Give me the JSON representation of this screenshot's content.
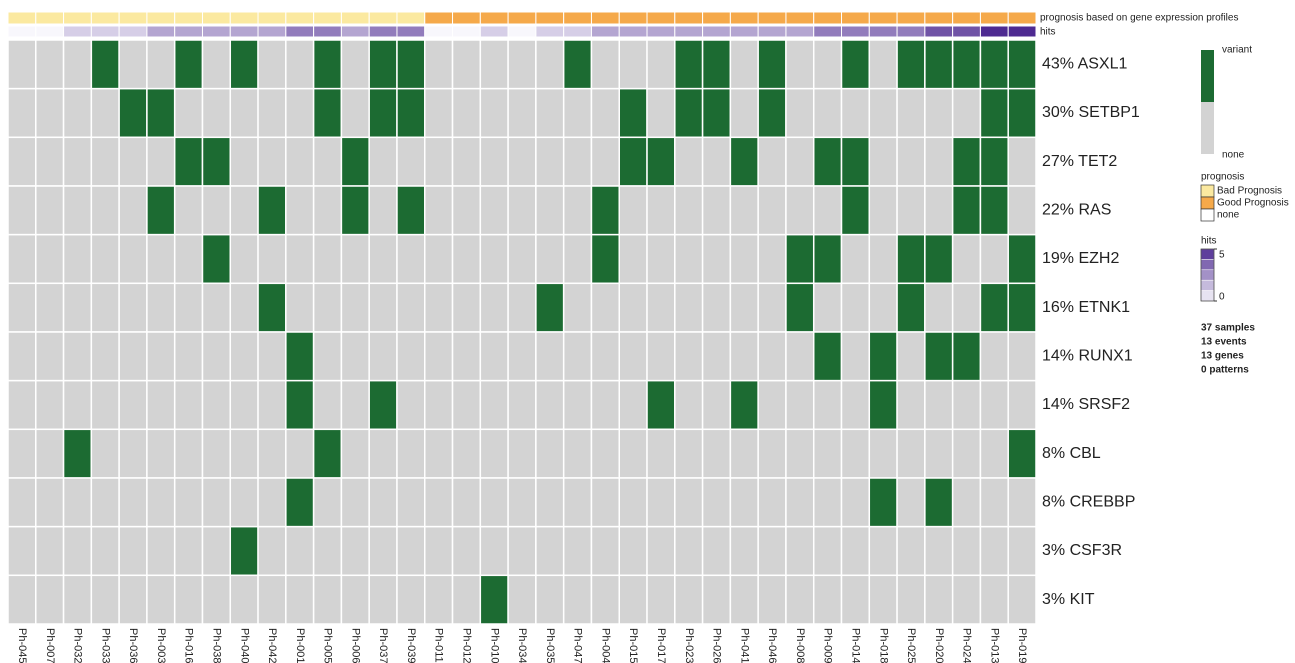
{
  "chart_data": {
    "type": "oncoprint",
    "variant_color": "#1c6b32",
    "none_color": "#d3d3d3",
    "samples": [
      "Ph-045",
      "Ph-007",
      "Ph-032",
      "Ph-033",
      "Ph-036",
      "Ph-003",
      "Ph-016",
      "Ph-038",
      "Ph-040",
      "Ph-042",
      "Ph-001",
      "Ph-005",
      "Ph-006",
      "Ph-037",
      "Ph-039",
      "Ph-011",
      "Ph-012",
      "Ph-010",
      "Ph-034",
      "Ph-035",
      "Ph-047",
      "Ph-004",
      "Ph-015",
      "Ph-017",
      "Ph-023",
      "Ph-026",
      "Ph-041",
      "Ph-046",
      "Ph-008",
      "Ph-009",
      "Ph-014",
      "Ph-018",
      "Ph-025",
      "Ph-020",
      "Ph-024",
      "Ph-013",
      "Ph-019"
    ],
    "prognosis_title": "prognosis based on gene expression profiles",
    "prognosis": [
      "Bad Prognosis",
      "Bad Prognosis",
      "Bad Prognosis",
      "Bad Prognosis",
      "Bad Prognosis",
      "Bad Prognosis",
      "Bad Prognosis",
      "Bad Prognosis",
      "Bad Prognosis",
      "Bad Prognosis",
      "Bad Prognosis",
      "Bad Prognosis",
      "Bad Prognosis",
      "Bad Prognosis",
      "Bad Prognosis",
      "Good Prognosis",
      "Good Prognosis",
      "Good Prognosis",
      "Good Prognosis",
      "Good Prognosis",
      "Good Prognosis",
      "Good Prognosis",
      "Good Prognosis",
      "Good Prognosis",
      "Good Prognosis",
      "Good Prognosis",
      "Good Prognosis",
      "Good Prognosis",
      "Good Prognosis",
      "Good Prognosis",
      "Good Prognosis",
      "Good Prognosis",
      "Good Prognosis",
      "Good Prognosis",
      "Good Prognosis",
      "Good Prognosis",
      "Good Prognosis"
    ],
    "hits_title": "hits",
    "rows": [
      {
        "label": "43% ASXL1",
        "cells": [
          0,
          0,
          0,
          1,
          0,
          0,
          1,
          0,
          1,
          0,
          0,
          1,
          0,
          1,
          1,
          0,
          0,
          0,
          0,
          0,
          1,
          0,
          0,
          0,
          1,
          1,
          0,
          1,
          0,
          0,
          1,
          0,
          1,
          1,
          1,
          1,
          1
        ]
      },
      {
        "label": "30% SETBP1",
        "cells": [
          0,
          0,
          0,
          0,
          1,
          1,
          0,
          0,
          0,
          0,
          0,
          1,
          0,
          1,
          1,
          0,
          0,
          0,
          0,
          0,
          0,
          0,
          1,
          0,
          1,
          1,
          0,
          1,
          0,
          0,
          0,
          0,
          0,
          0,
          0,
          1,
          1
        ]
      },
      {
        "label": "27% TET2",
        "cells": [
          0,
          0,
          0,
          0,
          0,
          0,
          1,
          1,
          0,
          0,
          0,
          0,
          1,
          0,
          0,
          0,
          0,
          0,
          0,
          0,
          0,
          0,
          1,
          1,
          0,
          0,
          1,
          0,
          0,
          1,
          1,
          0,
          0,
          0,
          1,
          1,
          0
        ]
      },
      {
        "label": "22% RAS",
        "cells": [
          0,
          0,
          0,
          0,
          0,
          1,
          0,
          0,
          0,
          1,
          0,
          0,
          1,
          0,
          1,
          0,
          0,
          0,
          0,
          0,
          0,
          1,
          0,
          0,
          0,
          0,
          0,
          0,
          0,
          0,
          1,
          0,
          0,
          0,
          1,
          1,
          0
        ]
      },
      {
        "label": "19% EZH2",
        "cells": [
          0,
          0,
          0,
          0,
          0,
          0,
          0,
          1,
          0,
          0,
          0,
          0,
          0,
          0,
          0,
          0,
          0,
          0,
          0,
          0,
          0,
          1,
          0,
          0,
          0,
          0,
          0,
          0,
          1,
          1,
          0,
          0,
          1,
          1,
          0,
          0,
          1
        ]
      },
      {
        "label": "16% ETNK1",
        "cells": [
          0,
          0,
          0,
          0,
          0,
          0,
          0,
          0,
          0,
          1,
          0,
          0,
          0,
          0,
          0,
          0,
          0,
          0,
          0,
          1,
          0,
          0,
          0,
          0,
          0,
          0,
          0,
          0,
          1,
          0,
          0,
          0,
          1,
          0,
          0,
          1,
          1
        ]
      },
      {
        "label": "14% RUNX1",
        "cells": [
          0,
          0,
          0,
          0,
          0,
          0,
          0,
          0,
          0,
          0,
          1,
          0,
          0,
          0,
          0,
          0,
          0,
          0,
          0,
          0,
          0,
          0,
          0,
          0,
          0,
          0,
          0,
          0,
          0,
          1,
          0,
          1,
          0,
          1,
          1,
          0,
          0
        ]
      },
      {
        "label": "14% SRSF2",
        "cells": [
          0,
          0,
          0,
          0,
          0,
          0,
          0,
          0,
          0,
          0,
          1,
          0,
          0,
          1,
          0,
          0,
          0,
          0,
          0,
          0,
          0,
          0,
          0,
          1,
          0,
          0,
          1,
          0,
          0,
          0,
          0,
          1,
          0,
          0,
          0,
          0,
          0
        ]
      },
      {
        "label": "8% CBL",
        "cells": [
          0,
          0,
          1,
          0,
          0,
          0,
          0,
          0,
          0,
          0,
          0,
          1,
          0,
          0,
          0,
          0,
          0,
          0,
          0,
          0,
          0,
          0,
          0,
          0,
          0,
          0,
          0,
          0,
          0,
          0,
          0,
          0,
          0,
          0,
          0,
          0,
          1
        ]
      },
      {
        "label": "8% CREBBP",
        "cells": [
          0,
          0,
          0,
          0,
          0,
          0,
          0,
          0,
          0,
          0,
          1,
          0,
          0,
          0,
          0,
          0,
          0,
          0,
          0,
          0,
          0,
          0,
          0,
          0,
          0,
          0,
          0,
          0,
          0,
          0,
          0,
          1,
          0,
          1,
          0,
          0,
          0
        ]
      },
      {
        "label": "3% CSF3R",
        "cells": [
          0,
          0,
          0,
          0,
          0,
          0,
          0,
          0,
          1,
          0,
          0,
          0,
          0,
          0,
          0,
          0,
          0,
          0,
          0,
          0,
          0,
          0,
          0,
          0,
          0,
          0,
          0,
          0,
          0,
          0,
          0,
          0,
          0,
          0,
          0,
          0,
          0
        ]
      },
      {
        "label": "3% KIT",
        "cells": [
          0,
          0,
          0,
          0,
          0,
          0,
          0,
          0,
          0,
          0,
          0,
          0,
          0,
          0,
          0,
          0,
          0,
          1,
          0,
          0,
          0,
          0,
          0,
          0,
          0,
          0,
          0,
          0,
          0,
          0,
          0,
          0,
          0,
          0,
          0,
          0,
          0
        ]
      }
    ],
    "legend": {
      "variant": "variant",
      "none": "none",
      "prognosis_title": "prognosis",
      "prognosis_items": [
        {
          "label": "Bad Prognosis",
          "color": "#fbe9a0"
        },
        {
          "label": "Good Prognosis",
          "color": "#f5a94a"
        },
        {
          "label": "none",
          "color": "#ffffff"
        }
      ],
      "hits_title": "hits",
      "hits_lim": [
        0,
        5
      ],
      "hits_ticks": [
        5,
        0
      ],
      "hits_colors": [
        "#f8f7fc",
        "#4e2a91"
      ]
    },
    "stats": [
      "37 samples",
      "13 events",
      "13 genes",
      "0 patterns"
    ]
  }
}
